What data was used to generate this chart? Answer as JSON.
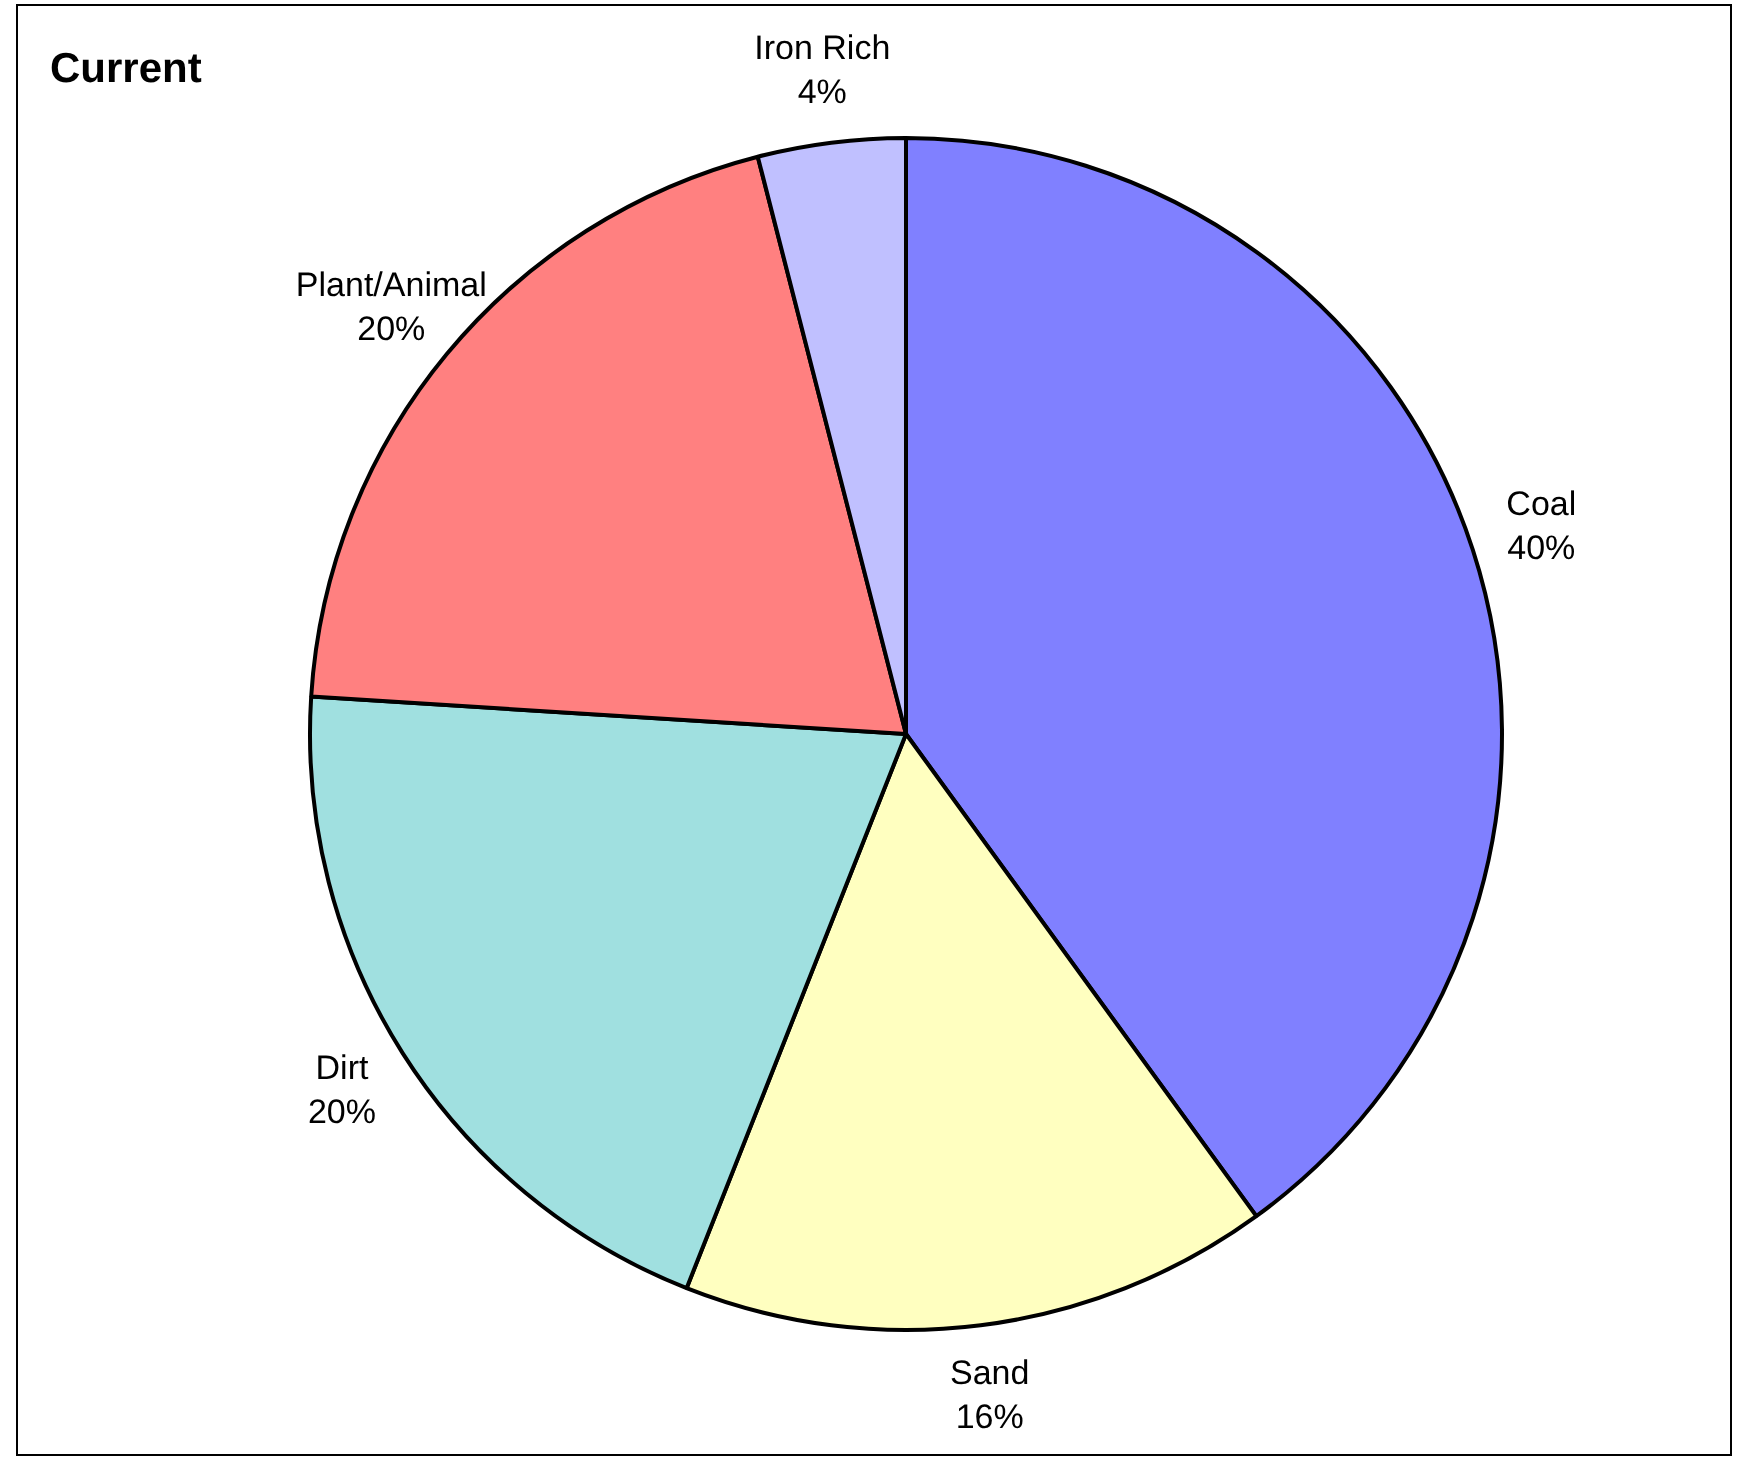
{
  "chart_data": {
    "type": "pie",
    "title": "Current",
    "categories": [
      "Coal",
      "Sand",
      "Dirt",
      "Plant/Animal",
      "Iron Rich"
    ],
    "values": [
      40,
      16,
      20,
      20,
      4
    ],
    "value_labels": [
      "40%",
      "16%",
      "20%",
      "20%",
      "4%"
    ],
    "colors": [
      "#8080ff",
      "#ffffc0",
      "#a0e0e0",
      "#ff8080",
      "#c0c0ff"
    ],
    "legend": false
  }
}
